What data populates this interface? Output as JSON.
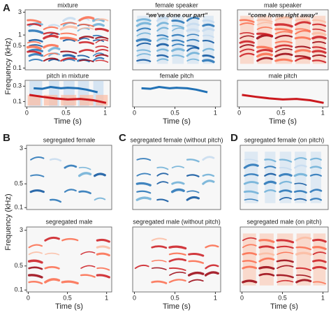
{
  "figure": {
    "panel_letters": [
      "A",
      "B",
      "C",
      "D"
    ],
    "y_label": "Frequency (kHz)",
    "x_label": "Time (s)",
    "spec_yticks": [
      "3",
      "1",
      "0.5",
      "0.1"
    ],
    "pitch_yticks": [
      "0.3",
      "0.1"
    ],
    "seg_yticks": [
      "3",
      "0.5",
      "0.1"
    ],
    "xticks": [
      "0",
      "0.5",
      "1"
    ],
    "top_panels": [
      {
        "title": "mixture"
      },
      {
        "title": "female speaker",
        "quote": "“we've done our part”"
      },
      {
        "title": "male speaker",
        "quote": "“come home right away”"
      }
    ],
    "pitch_panels": [
      {
        "title": "pitch in mixture"
      },
      {
        "title": "female pitch"
      },
      {
        "title": "male pitch"
      }
    ],
    "seg_panels": [
      {
        "title": "segregated female"
      },
      {
        "title": "segregated female (without pitch)"
      },
      {
        "title": "segregated female (on pitch)"
      },
      {
        "title": "segregated male"
      },
      {
        "title": "segregated male (without pitch)"
      },
      {
        "title": "segregated male (on pitch)"
      }
    ]
  }
}
